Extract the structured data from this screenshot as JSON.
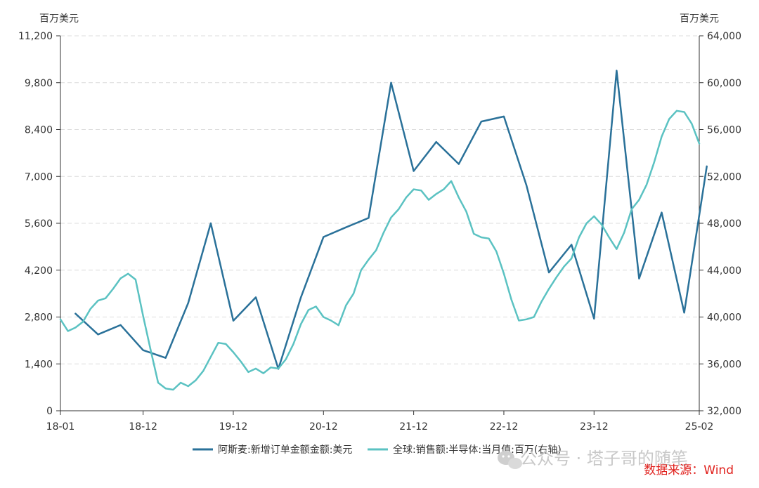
{
  "chart_data": {
    "type": "line",
    "left_axis_unit": "百万美元",
    "right_axis_unit": "百万美元",
    "x_ticks": [
      "18-01",
      "18-12",
      "19-12",
      "20-12",
      "21-12",
      "22-12",
      "23-12",
      "25-02"
    ],
    "x_range": [
      "2018-01",
      "2025-02"
    ],
    "y_left": {
      "ticks": [
        "0",
        "1,400",
        "2,800",
        "4,200",
        "5,600",
        "7,000",
        "8,400",
        "9,800",
        "11,200"
      ],
      "min": 0,
      "max": 11200
    },
    "y_right": {
      "ticks": [
        "32,000",
        "36,000",
        "40,000",
        "44,000",
        "48,000",
        "52,000",
        "56,000",
        "60,000",
        "64,000"
      ],
      "min": 32000,
      "max": 64000
    },
    "grid": true,
    "legend_position": "bottom",
    "series": [
      {
        "name": "阿斯麦:新增订单金额金额:美元",
        "axis": "left",
        "color": "#2a7199",
        "points": [
          [
            "2018-03",
            2900
          ],
          [
            "2018-06",
            2280
          ],
          [
            "2018-09",
            2560
          ],
          [
            "2018-12",
            1810
          ],
          [
            "2019-03",
            1580
          ],
          [
            "2019-06",
            3220
          ],
          [
            "2019-09",
            5600
          ],
          [
            "2019-12",
            2690
          ],
          [
            "2020-03",
            3390
          ],
          [
            "2020-06",
            1250
          ],
          [
            "2020-09",
            3390
          ],
          [
            "2020-12",
            5190
          ],
          [
            "2021-03",
            5480
          ],
          [
            "2021-06",
            5760
          ],
          [
            "2021-09",
            9800
          ],
          [
            "2021-12",
            7160
          ],
          [
            "2022-03",
            8030
          ],
          [
            "2022-06",
            7370
          ],
          [
            "2022-09",
            8640
          ],
          [
            "2022-12",
            8790
          ],
          [
            "2023-03",
            6740
          ],
          [
            "2023-06",
            4130
          ],
          [
            "2023-09",
            4960
          ],
          [
            "2023-12",
            2750
          ],
          [
            "2024-03",
            10160
          ],
          [
            "2024-06",
            3950
          ],
          [
            "2024-09",
            5920
          ],
          [
            "2024-12",
            2930
          ],
          [
            "2025-03",
            7300
          ]
        ]
      },
      {
        "name": "全球:销售额:半导体:当月值:百万(右轴)",
        "axis": "right",
        "color": "#5bc2c2",
        "points": [
          [
            "2018-01",
            39800
          ],
          [
            "2018-02",
            38800
          ],
          [
            "2018-03",
            39100
          ],
          [
            "2018-04",
            39600
          ],
          [
            "2018-05",
            40700
          ],
          [
            "2018-06",
            41400
          ],
          [
            "2018-07",
            41600
          ],
          [
            "2018-08",
            42400
          ],
          [
            "2018-09",
            43300
          ],
          [
            "2018-10",
            43700
          ],
          [
            "2018-11",
            43200
          ],
          [
            "2018-12",
            40100
          ],
          [
            "2019-01",
            37200
          ],
          [
            "2019-02",
            34400
          ],
          [
            "2019-03",
            33900
          ],
          [
            "2019-04",
            33800
          ],
          [
            "2019-05",
            34400
          ],
          [
            "2019-06",
            34100
          ],
          [
            "2019-07",
            34600
          ],
          [
            "2019-08",
            35400
          ],
          [
            "2019-09",
            36600
          ],
          [
            "2019-10",
            37800
          ],
          [
            "2019-11",
            37700
          ],
          [
            "2019-12",
            37000
          ],
          [
            "2020-01",
            36200
          ],
          [
            "2020-02",
            35300
          ],
          [
            "2020-03",
            35600
          ],
          [
            "2020-04",
            35200
          ],
          [
            "2020-05",
            35700
          ],
          [
            "2020-06",
            35600
          ],
          [
            "2020-07",
            36400
          ],
          [
            "2020-08",
            37700
          ],
          [
            "2020-09",
            39400
          ],
          [
            "2020-10",
            40600
          ],
          [
            "2020-11",
            40900
          ],
          [
            "2020-12",
            40000
          ],
          [
            "2021-01",
            39700
          ],
          [
            "2021-02",
            39300
          ],
          [
            "2021-03",
            41000
          ],
          [
            "2021-04",
            42000
          ],
          [
            "2021-05",
            44000
          ],
          [
            "2021-06",
            44900
          ],
          [
            "2021-07",
            45700
          ],
          [
            "2021-08",
            47200
          ],
          [
            "2021-09",
            48500
          ],
          [
            "2021-10",
            49200
          ],
          [
            "2021-11",
            50200
          ],
          [
            "2021-12",
            50900
          ],
          [
            "2022-01",
            50800
          ],
          [
            "2022-02",
            50000
          ],
          [
            "2022-03",
            50500
          ],
          [
            "2022-04",
            50900
          ],
          [
            "2022-05",
            51600
          ],
          [
            "2022-06",
            50200
          ],
          [
            "2022-07",
            49000
          ],
          [
            "2022-08",
            47100
          ],
          [
            "2022-09",
            46800
          ],
          [
            "2022-10",
            46700
          ],
          [
            "2022-11",
            45600
          ],
          [
            "2022-12",
            43700
          ],
          [
            "2023-01",
            41500
          ],
          [
            "2023-02",
            39700
          ],
          [
            "2023-03",
            39800
          ],
          [
            "2023-04",
            40000
          ],
          [
            "2023-05",
            41300
          ],
          [
            "2023-06",
            42400
          ],
          [
            "2023-07",
            43400
          ],
          [
            "2023-08",
            44300
          ],
          [
            "2023-09",
            45000
          ],
          [
            "2023-10",
            46800
          ],
          [
            "2023-11",
            48000
          ],
          [
            "2023-12",
            48600
          ],
          [
            "2024-01",
            47900
          ],
          [
            "2024-02",
            46800
          ],
          [
            "2024-03",
            45800
          ],
          [
            "2024-04",
            47200
          ],
          [
            "2024-05",
            49200
          ],
          [
            "2024-06",
            50000
          ],
          [
            "2024-07",
            51300
          ],
          [
            "2024-08",
            53200
          ],
          [
            "2024-09",
            55400
          ],
          [
            "2024-10",
            56900
          ],
          [
            "2024-11",
            57600
          ],
          [
            "2024-12",
            57500
          ],
          [
            "2025-01",
            56500
          ],
          [
            "2025-02",
            54800
          ]
        ]
      }
    ]
  },
  "watermark": "公众号 · 塔子哥的随笔",
  "source_label": "数据来源：Wind"
}
